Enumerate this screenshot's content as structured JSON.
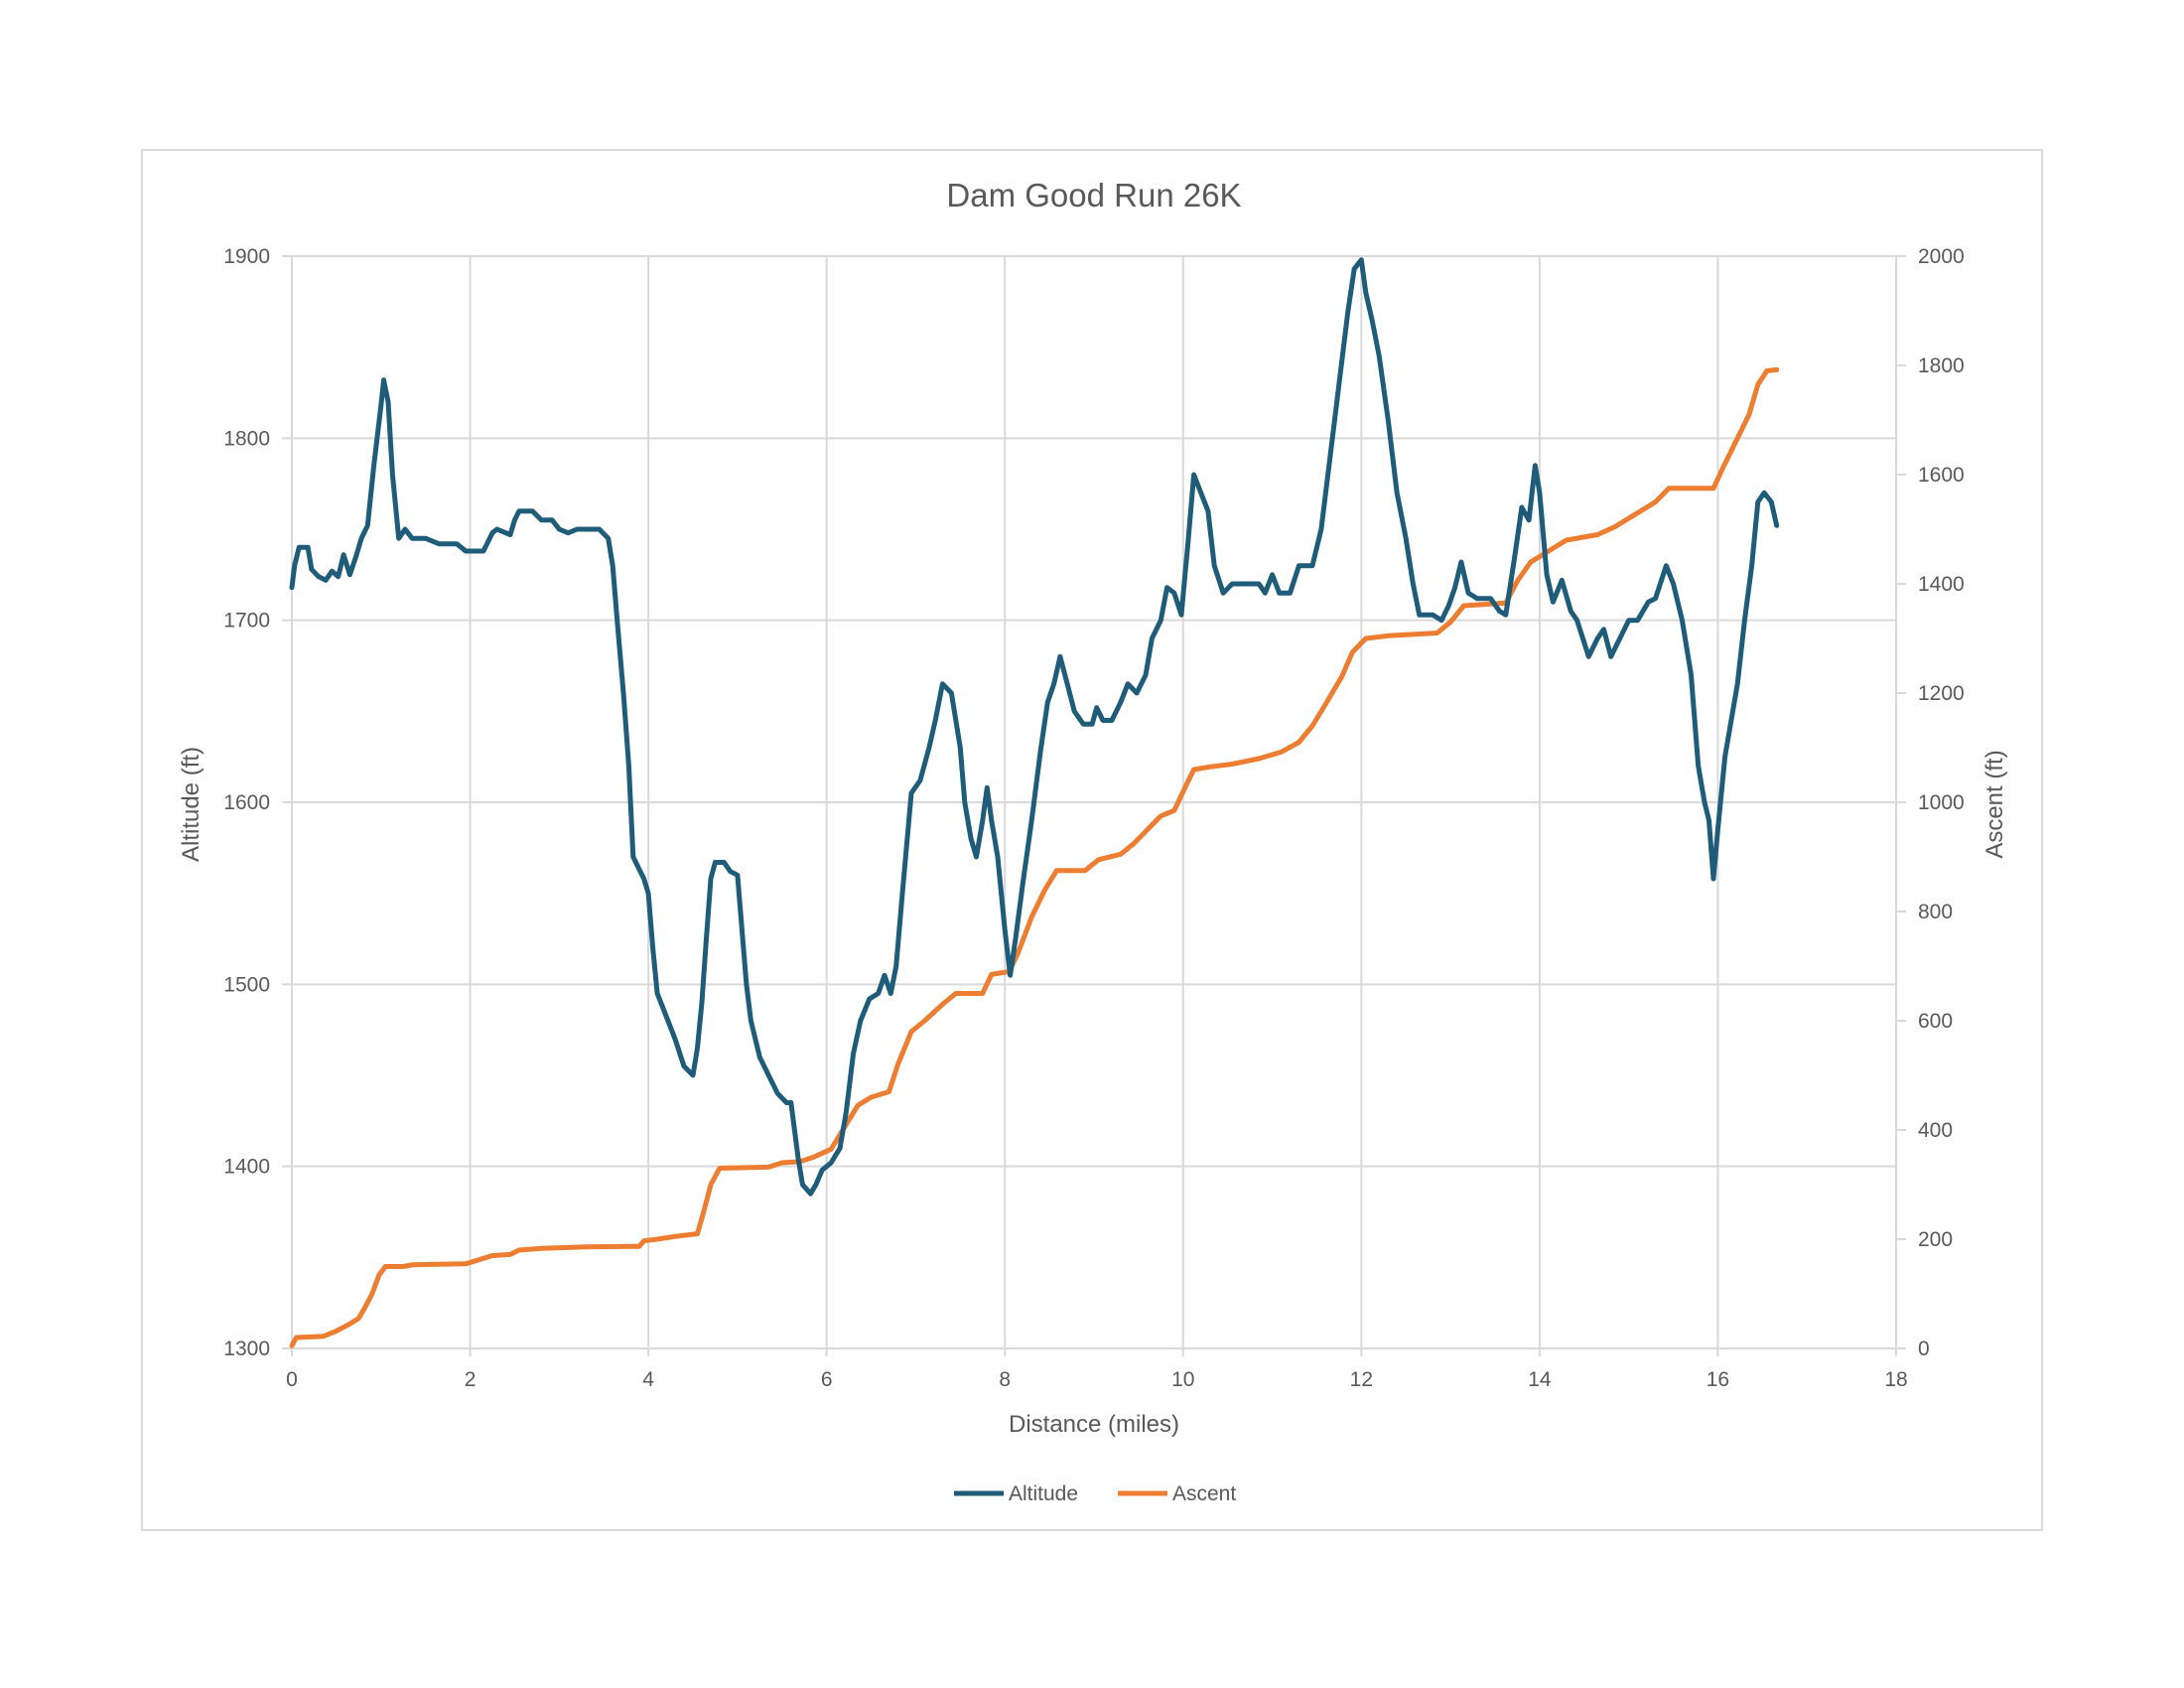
{
  "chart_data": {
    "type": "line",
    "title": "Dam Good Run 26K",
    "xlabel": "Distance (miles)",
    "ylabel": "Altitude (ft)",
    "y2label": "Ascent (ft)",
    "xlim": [
      0,
      18
    ],
    "ylim": [
      1300,
      1900
    ],
    "y2lim": [
      0,
      2000
    ],
    "xticks": [
      0,
      2,
      4,
      6,
      8,
      10,
      12,
      14,
      16,
      18
    ],
    "yticks": [
      1300,
      1400,
      1500,
      1600,
      1700,
      1800,
      1900
    ],
    "y2ticks": [
      0,
      200,
      400,
      600,
      800,
      1000,
      1200,
      1400,
      1600,
      1800,
      2000
    ],
    "grid": true,
    "legend_position": "bottom",
    "series": [
      {
        "name": "Altitude",
        "axis": "left",
        "color": "#1f5c7a",
        "points": [
          [
            0,
            1718
          ],
          [
            0.03,
            1730
          ],
          [
            0.08,
            1740
          ],
          [
            0.18,
            1740
          ],
          [
            0.22,
            1728
          ],
          [
            0.3,
            1724
          ],
          [
            0.38,
            1722
          ],
          [
            0.45,
            1727
          ],
          [
            0.52,
            1724
          ],
          [
            0.58,
            1736
          ],
          [
            0.65,
            1725
          ],
          [
            0.72,
            1735
          ],
          [
            0.78,
            1745
          ],
          [
            0.85,
            1752
          ],
          [
            0.92,
            1785
          ],
          [
            1.0,
            1818
          ],
          [
            1.03,
            1832
          ],
          [
            1.08,
            1820
          ],
          [
            1.13,
            1780
          ],
          [
            1.2,
            1745
          ],
          [
            1.27,
            1750
          ],
          [
            1.35,
            1745
          ],
          [
            1.5,
            1745
          ],
          [
            1.65,
            1742
          ],
          [
            1.85,
            1742
          ],
          [
            1.95,
            1738
          ],
          [
            2.15,
            1738
          ],
          [
            2.25,
            1748
          ],
          [
            2.3,
            1750
          ],
          [
            2.45,
            1747
          ],
          [
            2.5,
            1755
          ],
          [
            2.55,
            1760
          ],
          [
            2.7,
            1760
          ],
          [
            2.8,
            1755
          ],
          [
            2.92,
            1755
          ],
          [
            3.0,
            1750
          ],
          [
            3.1,
            1748
          ],
          [
            3.2,
            1750
          ],
          [
            3.45,
            1750
          ],
          [
            3.55,
            1745
          ],
          [
            3.6,
            1730
          ],
          [
            3.65,
            1700
          ],
          [
            3.72,
            1660
          ],
          [
            3.78,
            1620
          ],
          [
            3.83,
            1570
          ],
          [
            3.88,
            1565
          ],
          [
            3.95,
            1558
          ],
          [
            4.0,
            1550
          ],
          [
            4.05,
            1520
          ],
          [
            4.1,
            1495
          ],
          [
            4.18,
            1485
          ],
          [
            4.3,
            1470
          ],
          [
            4.4,
            1455
          ],
          [
            4.5,
            1450
          ],
          [
            4.55,
            1465
          ],
          [
            4.6,
            1490
          ],
          [
            4.65,
            1525
          ],
          [
            4.7,
            1558
          ],
          [
            4.75,
            1567
          ],
          [
            4.85,
            1567
          ],
          [
            4.92,
            1562
          ],
          [
            5.0,
            1560
          ],
          [
            5.05,
            1530
          ],
          [
            5.1,
            1500
          ],
          [
            5.15,
            1480
          ],
          [
            5.25,
            1460
          ],
          [
            5.35,
            1450
          ],
          [
            5.45,
            1440
          ],
          [
            5.55,
            1435
          ],
          [
            5.6,
            1435
          ],
          [
            5.68,
            1405
          ],
          [
            5.73,
            1390
          ],
          [
            5.82,
            1385
          ],
          [
            5.88,
            1390
          ],
          [
            5.95,
            1398
          ],
          [
            6.05,
            1402
          ],
          [
            6.15,
            1410
          ],
          [
            6.22,
            1430
          ],
          [
            6.3,
            1462
          ],
          [
            6.38,
            1480
          ],
          [
            6.48,
            1492
          ],
          [
            6.58,
            1495
          ],
          [
            6.65,
            1505
          ],
          [
            6.72,
            1495
          ],
          [
            6.78,
            1510
          ],
          [
            6.85,
            1550
          ],
          [
            6.95,
            1605
          ],
          [
            7.05,
            1612
          ],
          [
            7.15,
            1630
          ],
          [
            7.22,
            1645
          ],
          [
            7.3,
            1665
          ],
          [
            7.4,
            1660
          ],
          [
            7.5,
            1630
          ],
          [
            7.55,
            1600
          ],
          [
            7.62,
            1580
          ],
          [
            7.68,
            1570
          ],
          [
            7.75,
            1590
          ],
          [
            7.8,
            1608
          ],
          [
            7.85,
            1590
          ],
          [
            7.92,
            1570
          ],
          [
            8.0,
            1530
          ],
          [
            8.06,
            1505
          ],
          [
            8.12,
            1525
          ],
          [
            8.2,
            1555
          ],
          [
            8.3,
            1590
          ],
          [
            8.4,
            1628
          ],
          [
            8.48,
            1655
          ],
          [
            8.55,
            1665
          ],
          [
            8.62,
            1680
          ],
          [
            8.7,
            1665
          ],
          [
            8.78,
            1650
          ],
          [
            8.88,
            1643
          ],
          [
            8.98,
            1643
          ],
          [
            9.03,
            1652
          ],
          [
            9.1,
            1645
          ],
          [
            9.2,
            1645
          ],
          [
            9.3,
            1655
          ],
          [
            9.38,
            1665
          ],
          [
            9.48,
            1660
          ],
          [
            9.58,
            1670
          ],
          [
            9.65,
            1690
          ],
          [
            9.75,
            1700
          ],
          [
            9.82,
            1718
          ],
          [
            9.9,
            1715
          ],
          [
            9.98,
            1703
          ],
          [
            10.05,
            1740
          ],
          [
            10.12,
            1780
          ],
          [
            10.2,
            1770
          ],
          [
            10.28,
            1760
          ],
          [
            10.35,
            1730
          ],
          [
            10.45,
            1715
          ],
          [
            10.55,
            1720
          ],
          [
            10.7,
            1720
          ],
          [
            10.85,
            1720
          ],
          [
            10.92,
            1715
          ],
          [
            11.0,
            1725
          ],
          [
            11.08,
            1715
          ],
          [
            11.2,
            1715
          ],
          [
            11.3,
            1730
          ],
          [
            11.45,
            1730
          ],
          [
            11.55,
            1750
          ],
          [
            11.65,
            1790
          ],
          [
            11.75,
            1830
          ],
          [
            11.85,
            1870
          ],
          [
            11.92,
            1893
          ],
          [
            12.0,
            1898
          ],
          [
            12.05,
            1880
          ],
          [
            12.12,
            1865
          ],
          [
            12.2,
            1845
          ],
          [
            12.3,
            1810
          ],
          [
            12.4,
            1770
          ],
          [
            12.5,
            1745
          ],
          [
            12.58,
            1720
          ],
          [
            12.65,
            1703
          ],
          [
            12.8,
            1703
          ],
          [
            12.9,
            1700
          ],
          [
            12.98,
            1708
          ],
          [
            13.05,
            1718
          ],
          [
            13.12,
            1732
          ],
          [
            13.2,
            1715
          ],
          [
            13.3,
            1712
          ],
          [
            13.45,
            1712
          ],
          [
            13.55,
            1705
          ],
          [
            13.62,
            1703
          ],
          [
            13.72,
            1735
          ],
          [
            13.8,
            1762
          ],
          [
            13.88,
            1755
          ],
          [
            13.95,
            1785
          ],
          [
            14.0,
            1770
          ],
          [
            14.08,
            1725
          ],
          [
            14.15,
            1710
          ],
          [
            14.25,
            1722
          ],
          [
            14.35,
            1705
          ],
          [
            14.42,
            1700
          ],
          [
            14.55,
            1680
          ],
          [
            14.65,
            1690
          ],
          [
            14.72,
            1695
          ],
          [
            14.8,
            1680
          ],
          [
            14.9,
            1690
          ],
          [
            15.0,
            1700
          ],
          [
            15.1,
            1700
          ],
          [
            15.22,
            1710
          ],
          [
            15.3,
            1712
          ],
          [
            15.42,
            1730
          ],
          [
            15.5,
            1720
          ],
          [
            15.6,
            1700
          ],
          [
            15.7,
            1670
          ],
          [
            15.78,
            1620
          ],
          [
            15.85,
            1600
          ],
          [
            15.9,
            1590
          ],
          [
            15.95,
            1558
          ],
          [
            16.0,
            1585
          ],
          [
            16.08,
            1625
          ],
          [
            16.15,
            1645
          ],
          [
            16.22,
            1665
          ],
          [
            16.3,
            1700
          ],
          [
            16.38,
            1730
          ],
          [
            16.45,
            1765
          ],
          [
            16.52,
            1770
          ],
          [
            16.6,
            1765
          ],
          [
            16.66,
            1752
          ]
        ]
      },
      {
        "name": "Ascent",
        "axis": "right",
        "color": "#ed7d31",
        "points": [
          [
            0,
            5
          ],
          [
            0.05,
            20
          ],
          [
            0.35,
            22
          ],
          [
            0.5,
            32
          ],
          [
            0.65,
            45
          ],
          [
            0.75,
            55
          ],
          [
            0.82,
            75
          ],
          [
            0.9,
            100
          ],
          [
            0.98,
            135
          ],
          [
            1.05,
            150
          ],
          [
            1.25,
            150
          ],
          [
            1.35,
            153
          ],
          [
            1.95,
            155
          ],
          [
            2.15,
            165
          ],
          [
            2.25,
            170
          ],
          [
            2.45,
            172
          ],
          [
            2.55,
            180
          ],
          [
            2.8,
            183
          ],
          [
            3.3,
            186
          ],
          [
            3.9,
            187
          ],
          [
            3.95,
            197
          ],
          [
            4.1,
            200
          ],
          [
            4.3,
            205
          ],
          [
            4.55,
            210
          ],
          [
            4.62,
            250
          ],
          [
            4.7,
            300
          ],
          [
            4.8,
            330
          ],
          [
            5.35,
            332
          ],
          [
            5.5,
            340
          ],
          [
            5.7,
            342
          ],
          [
            5.85,
            350
          ],
          [
            6.05,
            365
          ],
          [
            6.2,
            405
          ],
          [
            6.35,
            445
          ],
          [
            6.5,
            460
          ],
          [
            6.7,
            470
          ],
          [
            6.8,
            520
          ],
          [
            6.95,
            580
          ],
          [
            7.1,
            600
          ],
          [
            7.3,
            630
          ],
          [
            7.45,
            650
          ],
          [
            7.75,
            650
          ],
          [
            7.85,
            685
          ],
          [
            8.05,
            690
          ],
          [
            8.15,
            725
          ],
          [
            8.3,
            790
          ],
          [
            8.45,
            840
          ],
          [
            8.58,
            875
          ],
          [
            8.9,
            875
          ],
          [
            9.05,
            895
          ],
          [
            9.3,
            905
          ],
          [
            9.45,
            925
          ],
          [
            9.6,
            950
          ],
          [
            9.75,
            975
          ],
          [
            9.9,
            985
          ],
          [
            10.03,
            1030
          ],
          [
            10.12,
            1060
          ],
          [
            10.3,
            1065
          ],
          [
            10.55,
            1070
          ],
          [
            10.85,
            1080
          ],
          [
            11.1,
            1092
          ],
          [
            11.3,
            1110
          ],
          [
            11.45,
            1140
          ],
          [
            11.6,
            1180
          ],
          [
            11.78,
            1230
          ],
          [
            11.9,
            1275
          ],
          [
            12.05,
            1300
          ],
          [
            12.3,
            1305
          ],
          [
            12.85,
            1310
          ],
          [
            13.0,
            1330
          ],
          [
            13.15,
            1360
          ],
          [
            13.62,
            1365
          ],
          [
            13.75,
            1405
          ],
          [
            13.9,
            1440
          ],
          [
            14.1,
            1460
          ],
          [
            14.3,
            1480
          ],
          [
            14.65,
            1490
          ],
          [
            14.85,
            1505
          ],
          [
            15.05,
            1525
          ],
          [
            15.3,
            1550
          ],
          [
            15.45,
            1575
          ],
          [
            15.95,
            1575
          ],
          [
            16.05,
            1610
          ],
          [
            16.2,
            1660
          ],
          [
            16.35,
            1710
          ],
          [
            16.45,
            1765
          ],
          [
            16.55,
            1790
          ],
          [
            16.66,
            1792
          ]
        ]
      }
    ]
  },
  "legend": {
    "altitude_label": "Altitude",
    "ascent_label": "Ascent"
  },
  "colors": {
    "altitude": "#1f5c7a",
    "ascent": "#ed7d31",
    "grid": "#d9d9d9",
    "text": "#595959"
  }
}
